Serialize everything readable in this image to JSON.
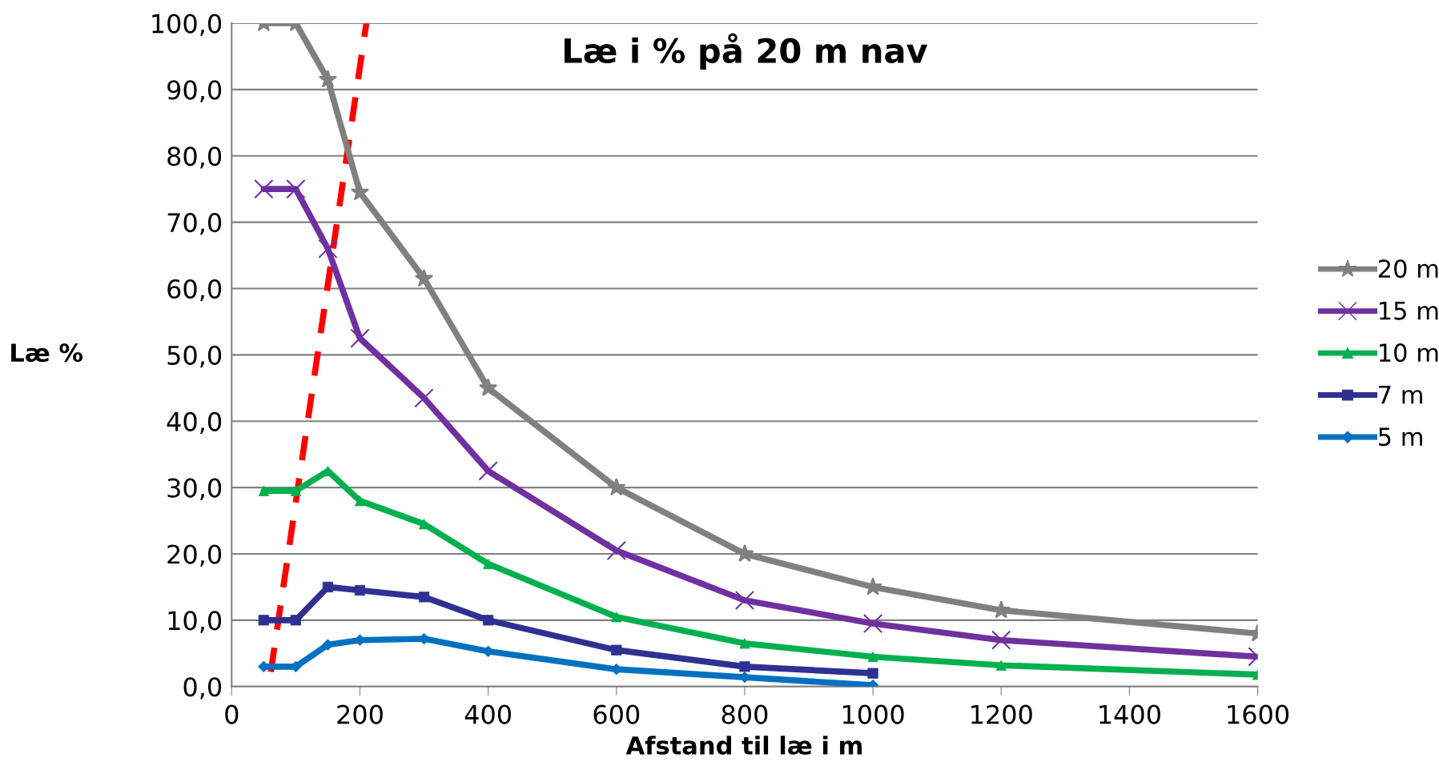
{
  "chart_data": {
    "type": "line",
    "title": "Læ i % på 20 m nav",
    "xlabel": "Afstand til læ i m",
    "ylabel": "Læ %",
    "x": [
      50,
      100,
      150,
      200,
      300,
      400,
      600,
      800,
      1000,
      1200,
      1600
    ],
    "series": [
      {
        "name": "20 m",
        "color": "#808080",
        "marker": "star",
        "values": [
          100,
          100,
          91.5,
          74.5,
          61.5,
          45,
          30,
          20,
          15,
          11.5,
          8
        ]
      },
      {
        "name": "15 m",
        "color": "#7030a0",
        "marker": "cross",
        "values": [
          75,
          75,
          66,
          52.5,
          43.5,
          32.5,
          20.5,
          13,
          9.5,
          7,
          4.5
        ]
      },
      {
        "name": "10 m",
        "color": "#00b050",
        "marker": "triangle",
        "values": [
          29.5,
          29.5,
          32.5,
          28,
          24.5,
          18.5,
          10.5,
          6.5,
          4.5,
          3.2,
          1.8
        ]
      },
      {
        "name": "7 m",
        "color": "#2e3192",
        "marker": "square",
        "x": [
          50,
          100,
          150,
          200,
          300,
          400,
          600,
          800,
          1000
        ],
        "values": [
          10,
          10,
          15,
          14.5,
          13.5,
          10,
          5.5,
          3,
          2
        ]
      },
      {
        "name": "5 m",
        "color": "#0070c0",
        "marker": "diamond",
        "x": [
          50,
          100,
          150,
          200,
          300,
          400,
          600,
          800,
          1000
        ],
        "values": [
          3,
          3,
          6.3,
          7,
          7.2,
          5.3,
          2.6,
          1.4,
          0.2
        ]
      },
      {
        "color": "#ff0000",
        "line_style": "dashed",
        "marker": "none",
        "x": [
          61,
          210
        ],
        "values": [
          2.2,
          100
        ]
      }
    ],
    "xlim": [
      0,
      1600
    ],
    "xticks": [
      0,
      200,
      400,
      600,
      800,
      1000,
      1200,
      1400,
      1600
    ],
    "ylim": [
      0,
      100
    ],
    "yticks": [
      {
        "value": 0,
        "label": "0,0"
      },
      {
        "value": 10,
        "label": "10,0"
      },
      {
        "value": 20,
        "label": "20,0"
      },
      {
        "value": 30,
        "label": "30,0"
      },
      {
        "value": 40,
        "label": "40,0"
      },
      {
        "value": 50,
        "label": "50,0"
      },
      {
        "value": 60,
        "label": "60,0"
      },
      {
        "value": 70,
        "label": "70,0"
      },
      {
        "value": 80,
        "label": "80,0"
      },
      {
        "value": 90,
        "label": "90,0"
      },
      {
        "value": 100,
        "label": "100,0"
      }
    ],
    "grid": "y",
    "legend": "right"
  }
}
